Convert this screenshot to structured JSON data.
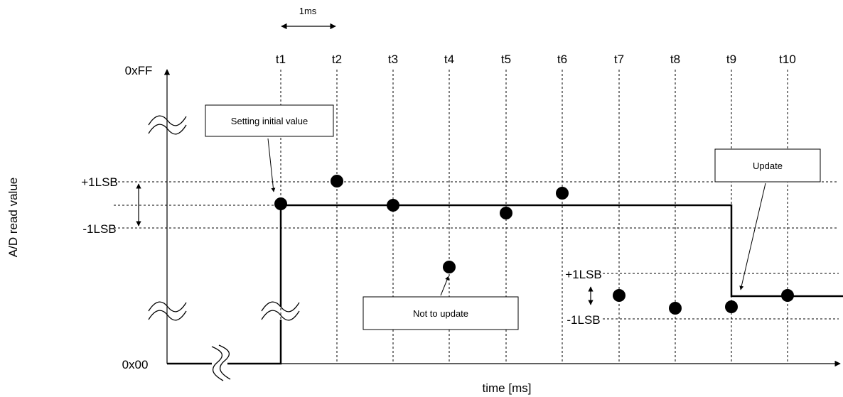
{
  "diagram": {
    "y_axis_label": "A/D read value",
    "x_axis_label": "time [ms]",
    "y_top_label": "0xFF",
    "y_bottom_label": "0x00",
    "interval_label": "1ms",
    "plus_lsb_label": "+1LSB",
    "minus_lsb_label": "-1LSB",
    "time_ticks": [
      "t1",
      "t2",
      "t3",
      "t4",
      "t5",
      "t6",
      "t7",
      "t8",
      "t9",
      "t10"
    ],
    "callouts": {
      "initial": "Setting initial value",
      "not_update": "Not to update",
      "update": "Update"
    }
  }
}
